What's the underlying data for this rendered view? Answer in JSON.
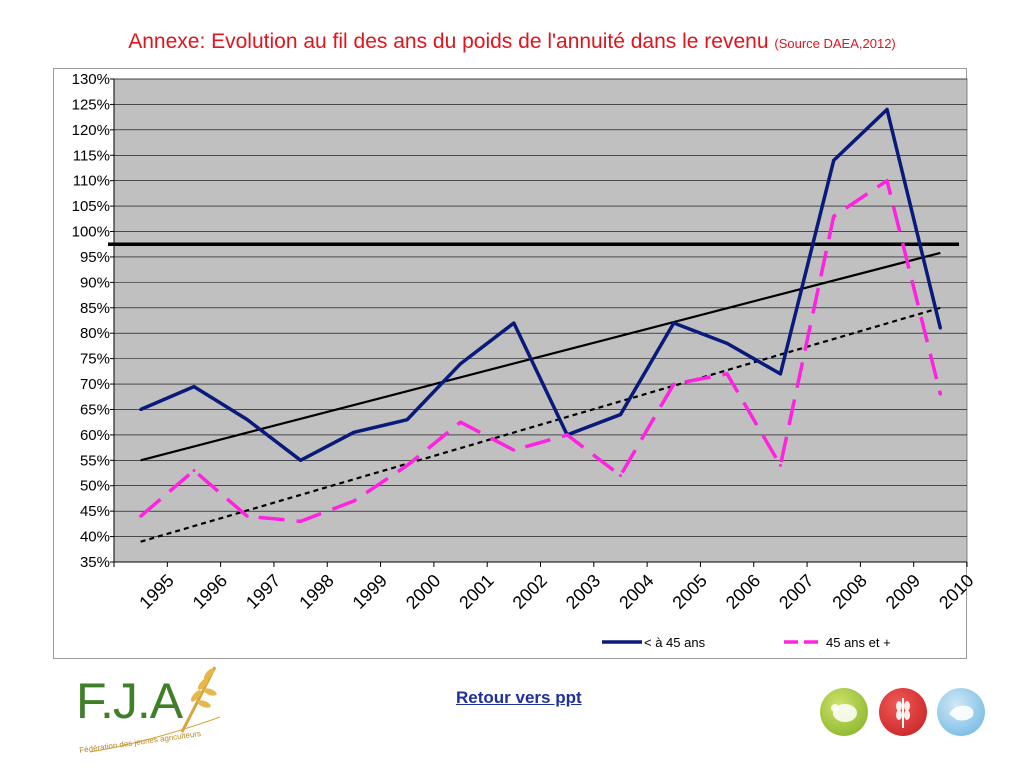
{
  "title": {
    "main": "Annexe: Evolution au fil des ans du poids de l'annuité dans le revenu",
    "source": "(Source DAEA,2012)"
  },
  "link": {
    "label": "Retour vers ppt"
  },
  "logo": {
    "letters": "F.J.A",
    "tagline": "Fédération des jeunes agriculteurs"
  },
  "chart_data": {
    "type": "line",
    "categories": [
      "1995",
      "1996",
      "1997",
      "1998",
      "1999",
      "2000",
      "2001",
      "2002",
      "2003",
      "2004",
      "2005",
      "2006",
      "2007",
      "2008",
      "2009",
      "2010"
    ],
    "y_tick_labels": [
      "35%",
      "40%",
      "45%",
      "50%",
      "55%",
      "60%",
      "65%",
      "70%",
      "75%",
      "80%",
      "85%",
      "90%",
      "95%",
      "100%",
      "105%",
      "110%",
      "115%",
      "120%",
      "125%",
      "130%"
    ],
    "ylim": [
      35,
      130
    ],
    "grid": true,
    "legend_position": "bottom-right",
    "plot_background": "#c0c0c0",
    "series": [
      {
        "name": "< à 45 ans",
        "color": "#0a1a7a",
        "style": "solid",
        "values": [
          65,
          69.5,
          63,
          55,
          60.5,
          63,
          74,
          82,
          60,
          64,
          82,
          78,
          72,
          114,
          124,
          81
        ]
      },
      {
        "name": "45 ans et +",
        "color": "#ff22e0",
        "style": "dashed",
        "values": [
          44,
          53,
          44,
          43,
          47,
          54,
          62.5,
          57,
          60,
          52,
          70,
          72,
          54,
          103,
          110,
          68
        ]
      }
    ],
    "trendlines": [
      {
        "color": "#000000",
        "style": "solid",
        "start": 55,
        "end": 95.8
      },
      {
        "color": "#000000",
        "style": "dotted",
        "start": 39,
        "end": 85
      }
    ],
    "reference_line": {
      "value": 97.5,
      "color": "#000000"
    }
  }
}
